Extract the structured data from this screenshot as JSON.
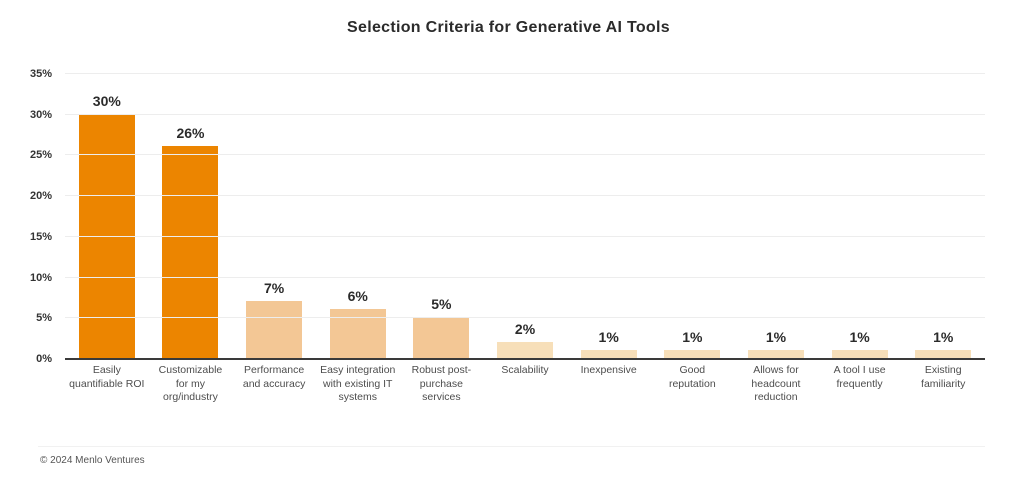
{
  "title": "Selection Criteria for Generative AI Tools",
  "footer": {
    "copyright": "© 2024 Menlo Ventures"
  },
  "colors": {
    "bar_dark_orange": "#EC8500",
    "bar_medium_tan": "#F3C795",
    "bar_light_tan": "#F7DFB9",
    "gridline": "#EDEDED",
    "axis_line": "#3A3A3A",
    "title_text": "#2B2B2B",
    "value_label_text": "#2B2B2B",
    "ytick_text": "#333333",
    "xlabel_text": "#4D4D4D",
    "footer_text": "#555555"
  },
  "chart_data": {
    "type": "bar",
    "title": "Selection Criteria for Generative AI Tools",
    "xlabel": "",
    "ylabel": "",
    "ylim": [
      0,
      35
    ],
    "grid": true,
    "legend": false,
    "yticks": [
      0,
      5,
      10,
      15,
      20,
      25,
      30,
      35
    ],
    "ytick_labels": [
      "0%",
      "5%",
      "10%",
      "15%",
      "20%",
      "25%",
      "30%",
      "35%"
    ],
    "categories": [
      "Easily quantifiable ROI",
      "Customizable for my org/industry",
      "Performance and accuracy",
      "Easy integration with existing IT systems",
      "Robust post-purchase services",
      "Scalability",
      "Inexpensive",
      "Good reputation",
      "Allows for headcount reduction",
      "A tool I use frequently",
      "Existing familiarity"
    ],
    "category_lines": [
      "Easily\nquantifiable ROI",
      "Customizable\nfor my\norg/industry",
      "Performance\nand accuracy",
      "Easy integration\nwith existing IT\nsystems",
      "Robust post-\npurchase\nservices",
      "Scalability",
      "Inexpensive",
      "Good\nreputation",
      "Allows for\nheadcount\nreduction",
      "A tool I use\nfrequently",
      "Existing\nfamiliarity"
    ],
    "values": [
      30,
      26,
      7,
      6,
      5,
      2,
      1,
      1,
      1,
      1,
      1
    ],
    "value_labels": [
      "30%",
      "26%",
      "7%",
      "6%",
      "5%",
      "2%",
      "1%",
      "1%",
      "1%",
      "1%",
      "1%"
    ],
    "bar_colors": [
      "#EC8500",
      "#EC8500",
      "#F3C795",
      "#F3C795",
      "#F3C795",
      "#F7DFB9",
      "#F7DFB9",
      "#F7DFB9",
      "#F7DFB9",
      "#F7DFB9",
      "#F7DFB9"
    ]
  }
}
